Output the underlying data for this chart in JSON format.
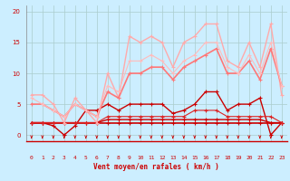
{
  "xlabel": "Vent moyen/en rafales ( km/h )",
  "xlim": [
    -0.5,
    23.5
  ],
  "ylim": [
    -1,
    21
  ],
  "yticks": [
    0,
    5,
    10,
    15,
    20
  ],
  "xticks": [
    0,
    1,
    2,
    3,
    4,
    5,
    6,
    7,
    8,
    9,
    10,
    11,
    12,
    13,
    14,
    15,
    16,
    17,
    18,
    19,
    20,
    21,
    22,
    23
  ],
  "bg_color": "#cceeff",
  "grid_color": "#aacccc",
  "lines": [
    {
      "x": [
        0,
        1,
        2,
        3,
        4,
        5,
        6,
        7,
        8,
        9,
        10,
        11,
        12,
        13,
        14,
        15,
        16,
        17,
        18,
        19,
        20,
        21,
        22,
        23
      ],
      "y": [
        2,
        2,
        2,
        2,
        2,
        2,
        2,
        2,
        2,
        2,
        2,
        2,
        2,
        2,
        2,
        2,
        2,
        2,
        2,
        2,
        2,
        2,
        2,
        2
      ],
      "color": "#cc0000",
      "lw": 1.2,
      "marker": "+"
    },
    {
      "x": [
        0,
        1,
        2,
        3,
        4,
        5,
        6,
        7,
        8,
        9,
        10,
        11,
        12,
        13,
        14,
        15,
        16,
        17,
        18,
        19,
        20,
        21,
        22,
        23
      ],
      "y": [
        2,
        2,
        2,
        2,
        2,
        2,
        2,
        2.5,
        2.5,
        2.5,
        2.5,
        2.5,
        2.5,
        2.5,
        2.5,
        2.5,
        2.5,
        2.5,
        2.5,
        2.5,
        2.5,
        2.5,
        2,
        2
      ],
      "color": "#cc0000",
      "lw": 1.0,
      "marker": "+"
    },
    {
      "x": [
        0,
        1,
        2,
        3,
        4,
        5,
        6,
        7,
        8,
        9,
        10,
        11,
        12,
        13,
        14,
        15,
        16,
        17,
        18,
        19,
        20,
        21,
        22,
        23
      ],
      "y": [
        2,
        2,
        1.5,
        0,
        1.5,
        4,
        4,
        5,
        4,
        5,
        5,
        5,
        5,
        3.5,
        4,
        5,
        7,
        7,
        4,
        5,
        5,
        6,
        0,
        2
      ],
      "color": "#cc0000",
      "lw": 1.0,
      "marker": "+"
    },
    {
      "x": [
        0,
        1,
        2,
        3,
        4,
        5,
        6,
        7,
        8,
        9,
        10,
        11,
        12,
        13,
        14,
        15,
        16,
        17,
        18,
        19,
        20,
        21,
        22,
        23
      ],
      "y": [
        2,
        2,
        2,
        2,
        2,
        2,
        2,
        3,
        3,
        3,
        3,
        3,
        3,
        3,
        3,
        4,
        4,
        4,
        3,
        3,
        3,
        3,
        3,
        2
      ],
      "color": "#dd2222",
      "lw": 0.8,
      "marker": "+"
    },
    {
      "x": [
        0,
        1,
        2,
        3,
        4,
        5,
        6,
        7,
        8,
        9,
        10,
        11,
        12,
        13,
        14,
        15,
        16,
        17,
        18,
        19,
        20,
        21,
        22,
        23
      ],
      "y": [
        6.5,
        6.5,
        5,
        2,
        6,
        4,
        2,
        10,
        6,
        16,
        15,
        16,
        15,
        11,
        15,
        16,
        18,
        18,
        12,
        11,
        15,
        11,
        18,
        6.5
      ],
      "color": "#ffaaaa",
      "lw": 1.0,
      "marker": "+"
    },
    {
      "x": [
        0,
        1,
        2,
        3,
        4,
        5,
        6,
        7,
        8,
        9,
        10,
        11,
        12,
        13,
        14,
        15,
        16,
        17,
        18,
        19,
        20,
        21,
        22,
        23
      ],
      "y": [
        5,
        5,
        4,
        3,
        5,
        4,
        3,
        7,
        6,
        10,
        10,
        11,
        11,
        9,
        11,
        12,
        13,
        14,
        10,
        10,
        12,
        9,
        14,
        8
      ],
      "color": "#ff7777",
      "lw": 1.2,
      "marker": "+"
    },
    {
      "x": [
        0,
        1,
        2,
        3,
        4,
        5,
        6,
        7,
        8,
        9,
        10,
        11,
        12,
        13,
        14,
        15,
        16,
        17,
        18,
        19,
        20,
        21,
        22,
        23
      ],
      "y": [
        6,
        5,
        4,
        3,
        5,
        4,
        3,
        8,
        7,
        12,
        12,
        13,
        12,
        10,
        12,
        13,
        15,
        15,
        11,
        10,
        13,
        10,
        15,
        8
      ],
      "color": "#ffbbbb",
      "lw": 0.8,
      "marker": "+"
    }
  ],
  "arrow_color": "#cc0000"
}
